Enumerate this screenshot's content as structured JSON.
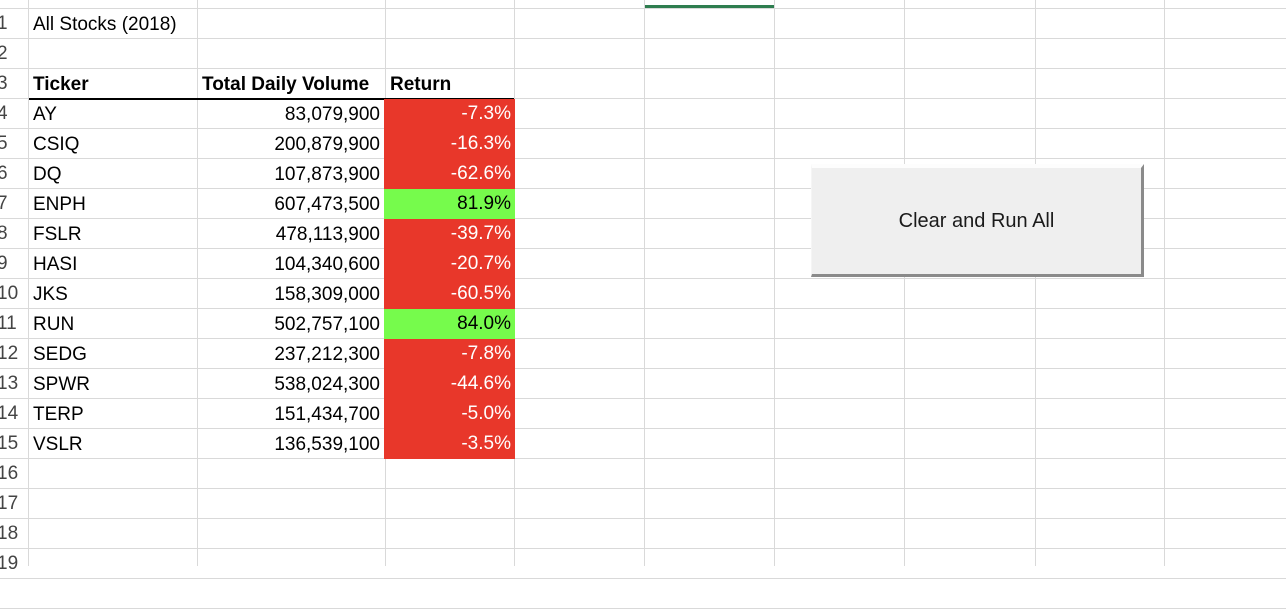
{
  "sheet": {
    "title": "All Stocks (2018)",
    "row_numbers": [
      "1",
      "2",
      "3",
      "4",
      "5",
      "6",
      "7",
      "8",
      "9",
      "10",
      "11",
      "12",
      "13",
      "14",
      "15",
      "16",
      "17",
      "18",
      "19"
    ],
    "headers": {
      "ticker": "Ticker",
      "volume": "Total Daily Volume",
      "return": "Return"
    },
    "rows": [
      {
        "ticker": "AY",
        "volume": "83,079,900",
        "return": "-7.3%",
        "status": "negative"
      },
      {
        "ticker": "CSIQ",
        "volume": "200,879,900",
        "return": "-16.3%",
        "status": "negative"
      },
      {
        "ticker": "DQ",
        "volume": "107,873,900",
        "return": "-62.6%",
        "status": "negative"
      },
      {
        "ticker": "ENPH",
        "volume": "607,473,500",
        "return": "81.9%",
        "status": "positive"
      },
      {
        "ticker": "FSLR",
        "volume": "478,113,900",
        "return": "-39.7%",
        "status": "negative"
      },
      {
        "ticker": "HASI",
        "volume": "104,340,600",
        "return": "-20.7%",
        "status": "negative"
      },
      {
        "ticker": "JKS",
        "volume": "158,309,000",
        "return": "-60.5%",
        "status": "negative"
      },
      {
        "ticker": "RUN",
        "volume": "502,757,100",
        "return": "84.0%",
        "status": "positive"
      },
      {
        "ticker": "SEDG",
        "volume": "237,212,300",
        "return": "-7.8%",
        "status": "negative"
      },
      {
        "ticker": "SPWR",
        "volume": "538,024,300",
        "return": "-44.6%",
        "status": "negative"
      },
      {
        "ticker": "TERP",
        "volume": "151,434,700",
        "return": "-5.0%",
        "status": "negative"
      },
      {
        "ticker": "VSLR",
        "volume": "136,539,100",
        "return": "-3.5%",
        "status": "negative"
      }
    ]
  },
  "button": {
    "label": "Clear and Run All"
  },
  "colors": {
    "negative": "#e8372a",
    "positive": "#76fb4c",
    "gridline": "#d9d9d9"
  }
}
